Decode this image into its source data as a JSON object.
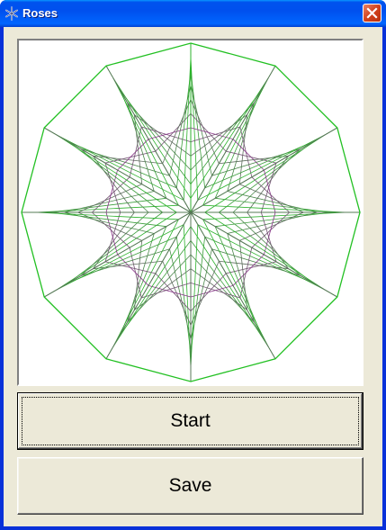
{
  "window": {
    "title": "Roses",
    "icon": "snowflake-icon",
    "close_icon": "close-icon",
    "titlebar_color": "#0054e3",
    "close_color": "#d2411c"
  },
  "canvas": {
    "outer_color": "#22c022",
    "inner_color": "#9a1a9a",
    "rose_vertices": 12,
    "lines_per_petal": 12
  },
  "buttons": {
    "start_label": "Start",
    "save_label": "Save"
  }
}
